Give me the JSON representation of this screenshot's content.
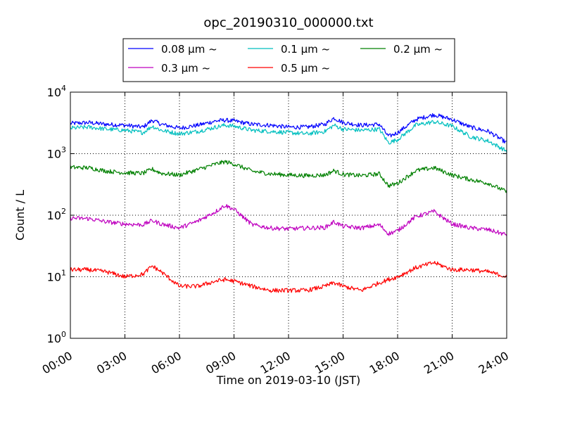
{
  "chart_data": {
    "type": "line",
    "title": "opc_20190310_000000.txt",
    "xlabel": "Time on 2019-03-10 (JST)",
    "ylabel": "Count / L",
    "x_ticks": [
      "00:00",
      "03:00",
      "06:00",
      "09:00",
      "12:00",
      "15:00",
      "18:00",
      "21:00",
      "24:00"
    ],
    "xlim_hours": [
      0,
      24
    ],
    "y_scale": "log",
    "ylim": [
      1,
      10000
    ],
    "y_ticks": [
      {
        "base": "10",
        "exp": "0"
      },
      {
        "base": "10",
        "exp": "1"
      },
      {
        "base": "10",
        "exp": "2"
      },
      {
        "base": "10",
        "exp": "3"
      },
      {
        "base": "10",
        "exp": "4"
      }
    ],
    "grid": true,
    "legend_placement": "top-center, outside plot",
    "x_hours": [
      0,
      1,
      2,
      3,
      4,
      4.5,
      5,
      6,
      7,
      8,
      8.5,
      9,
      10,
      11,
      12,
      13,
      14,
      14.5,
      15,
      16,
      17,
      17.5,
      18,
      19,
      20,
      21,
      22,
      23,
      24
    ],
    "series": [
      {
        "name": "0.08 μm ~",
        "color": "#0000ff",
        "values": [
          3100,
          3200,
          3000,
          2900,
          2700,
          3500,
          3000,
          2600,
          2900,
          3400,
          3500,
          3400,
          3000,
          2900,
          2700,
          2700,
          3000,
          3800,
          3200,
          2900,
          3000,
          1900,
          2200,
          3600,
          4300,
          3600,
          2700,
          2300,
          1500
        ]
      },
      {
        "name": "0.1 μm ~",
        "color": "#00bfbf",
        "values": [
          2600,
          2700,
          2500,
          2400,
          2200,
          2800,
          2400,
          2100,
          2300,
          2700,
          2900,
          2800,
          2400,
          2300,
          2200,
          2100,
          2300,
          2900,
          2500,
          2400,
          2500,
          1500,
          1700,
          2900,
          3300,
          2800,
          1900,
          1600,
          1100
        ]
      },
      {
        "name": "0.2 μm ~",
        "color": "#008000",
        "values": [
          600,
          590,
          520,
          490,
          480,
          560,
          480,
          450,
          550,
          680,
          740,
          680,
          520,
          470,
          450,
          440,
          450,
          530,
          460,
          440,
          470,
          300,
          330,
          530,
          590,
          450,
          380,
          330,
          240
        ]
      },
      {
        "name": "0.3 μm ~",
        "color": "#bf00bf",
        "values": [
          90,
          88,
          78,
          72,
          70,
          82,
          72,
          62,
          80,
          115,
          145,
          125,
          70,
          62,
          60,
          62,
          63,
          78,
          66,
          62,
          70,
          50,
          56,
          95,
          115,
          72,
          62,
          58,
          48
        ]
      },
      {
        "name": "0.5 μm ~",
        "color": "#ff0000",
        "values": [
          13,
          13,
          12,
          10,
          11,
          15,
          12,
          7,
          7,
          8.5,
          9,
          8.5,
          7,
          6,
          6,
          6,
          7,
          8,
          7,
          6,
          8,
          9,
          10,
          14,
          17,
          13,
          13,
          12,
          10
        ]
      }
    ]
  }
}
